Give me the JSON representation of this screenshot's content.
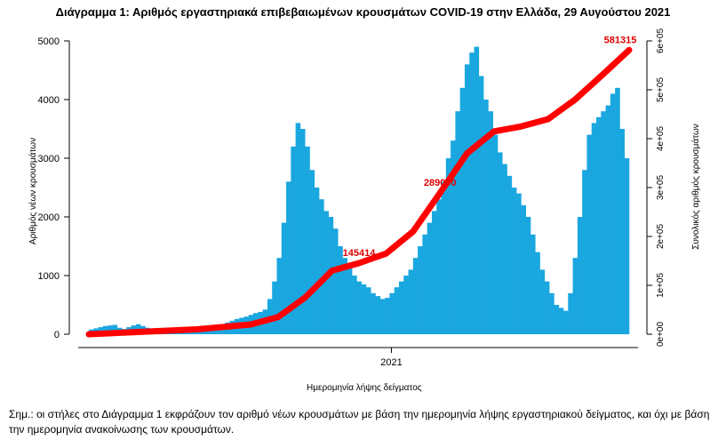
{
  "chart_data": {
    "type": "bar",
    "title": "Διάγραμμα 1: Αριθμός εργαστηριακά επιβεβαιωμένων κρουσμάτων COVID-19 στην Ελλάδα, 29 Αυγούστου 2021",
    "xlabel": "Ημερομηνία λήψης δείγματος",
    "ylabel": "Αριθμός νέων κρουσμάτων",
    "y2label": "Συνολικός αριθμός κρουσμάτων",
    "x_ticks": [
      "2021"
    ],
    "y_ticks": [
      "0",
      "1000",
      "2000",
      "3000",
      "4000",
      "5000"
    ],
    "y2_ticks": [
      "0e+00",
      "1e+05",
      "2e+05",
      "3e+05",
      "4e+05",
      "5e+05",
      "6e+05"
    ],
    "ylim": [
      0,
      5000
    ],
    "y2lim": [
      0,
      600000
    ],
    "series": [
      {
        "axis": "left",
        "color": "#1aa7e0",
        "values": [
          80,
          100,
          120,
          140,
          150,
          160,
          110,
          90,
          120,
          150,
          170,
          140,
          110,
          80,
          60,
          50,
          45,
          40,
          40,
          45,
          50,
          60,
          70,
          80,
          95,
          110,
          130,
          150,
          170,
          200,
          230,
          260,
          280,
          300,
          330,
          360,
          380,
          420,
          600,
          900,
          1300,
          1900,
          2600,
          3200,
          3600,
          3500,
          3200,
          2800,
          2500,
          2300,
          2100,
          2000,
          1800,
          1500,
          1300,
          1150,
          1000,
          900,
          850,
          800,
          700,
          650,
          600,
          620,
          700,
          800,
          900,
          1000,
          1100,
          1300,
          1500,
          1700,
          1900,
          2100,
          2300,
          2600,
          3000,
          3300,
          3800,
          4200,
          4600,
          4800,
          4900,
          4400,
          4000,
          3800,
          3400,
          3100,
          2900,
          2700,
          2500,
          2400,
          2200,
          2000,
          1700,
          1400,
          1100,
          900,
          700,
          500,
          450,
          400,
          700,
          1300,
          2000,
          2800,
          3400,
          3600,
          3700,
          3800,
          3900,
          4100,
          4200,
          3500,
          3000
        ]
      },
      {
        "axis": "right",
        "name": "cumulative",
        "color": "#ff0000",
        "x": [
          0,
          0.1,
          0.2,
          0.3,
          0.35,
          0.4,
          0.45,
          0.5,
          0.55,
          0.6,
          0.65,
          0.7,
          0.75,
          0.8,
          0.85,
          0.9,
          0.95,
          1.0
        ],
        "values": [
          0,
          5000,
          10000,
          20000,
          35000,
          75000,
          130000,
          145414,
          165000,
          210000,
          289000,
          370000,
          415000,
          425000,
          440000,
          480000,
          530000,
          581315
        ]
      }
    ],
    "annotations": [
      "145414",
      "289000",
      "581315"
    ],
    "note": "Σημ.: οι στήλες στο Διάγραμμα 1 εκφράζουν τον αριθμό νέων κρουσμάτων με βάση την ημερομηνία λήψης εργαστηριακού δείγματος, και όχι με βάση την ημερομηνία ανακοίνωσης των κρουσμάτων."
  }
}
